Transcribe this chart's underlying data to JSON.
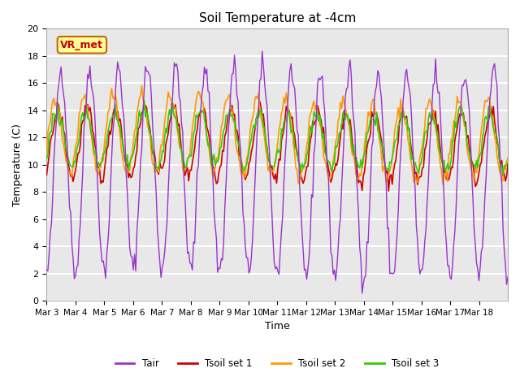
{
  "title": "Soil Temperature at -4cm",
  "xlabel": "Time",
  "ylabel": "Temperature (C)",
  "ylim": [
    0,
    20
  ],
  "n_days": 16,
  "background_color": "#e8e8e8",
  "grid_color": "white",
  "series_colors": {
    "Tair": "#9933cc",
    "Tsoil_set1": "#cc0000",
    "Tsoil_set2": "#ff9900",
    "Tsoil_set3": "#33cc00"
  },
  "legend_labels": [
    "Tair",
    "Tsoil set 1",
    "Tsoil set 2",
    "Tsoil set 3"
  ],
  "annotation_text": "VR_met",
  "annotation_color": "#cc0000",
  "annotation_bg": "#ffff99",
  "annotation_border": "#cc6600",
  "tick_labels": [
    "Mar 3",
    "Mar 4",
    "Mar 5",
    "Mar 6",
    "Mar 7",
    "Mar 8",
    "Mar 9",
    "Mar 10",
    "Mar 11",
    "Mar 12",
    "Mar 13",
    "Mar 14",
    "Mar 15",
    "Mar 16",
    "Mar 17",
    "Mar 18"
  ],
  "yticks": [
    0,
    2,
    4,
    6,
    8,
    10,
    12,
    14,
    16,
    18,
    20
  ]
}
